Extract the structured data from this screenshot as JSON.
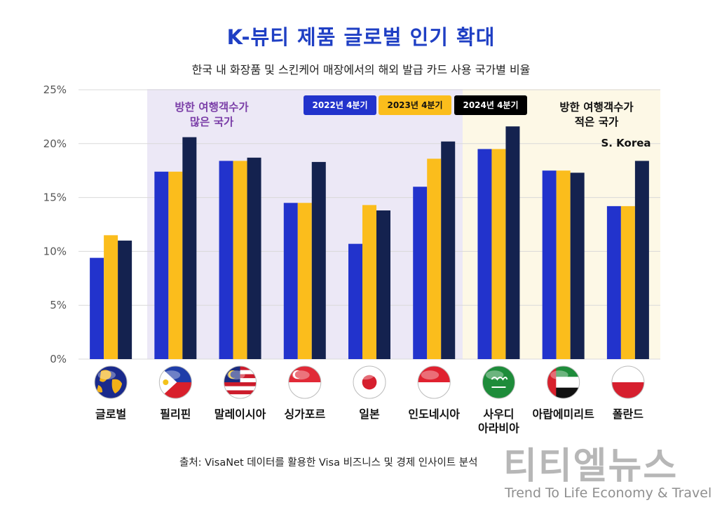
{
  "title": "K-뷰티 제품 글로벌 인기 확대",
  "subtitle": "한국 내 화장품 및 스킨케어 매장에서의 해외 발급 카드 사용 국가별 비율",
  "band_labels": {
    "high": "방한 여행객수가\n많은 국가",
    "low": "방한 여행객수가\n적은 국가"
  },
  "korea_note": "S. Korea",
  "source": "출처: VisaNet 데이터를 활용한 Visa 비즈니스 및 경제 인사이트 분석",
  "watermark": {
    "main": "티티엘뉴스",
    "sub": "Trend To Life Economy & Travel"
  },
  "colors": {
    "series_2022": "#2233cc",
    "series_2023": "#fbbd1c",
    "series_2024": "#14224f",
    "title": "#1f3fc4",
    "band_high": "#ece8f6",
    "band_low": "#fdf8e6"
  },
  "chart_data": {
    "type": "bar",
    "title": "K-뷰티 제품 글로벌 인기 확대",
    "subtitle": "한국 내 화장품 및 스킨케어 매장에서의 해외 발급 카드 사용 국가별 비율",
    "categories": [
      "글로벌",
      "필리핀",
      "말레이시아",
      "싱가포르",
      "일본",
      "인도네시아",
      "사우디\n아라비아",
      "아랍에미리트",
      "폴란드"
    ],
    "flag_icons": [
      "globe-icon",
      "philippines-flag-icon",
      "malaysia-flag-icon",
      "singapore-flag-icon",
      "japan-flag-icon",
      "indonesia-flag-icon",
      "saudi-arabia-flag-icon",
      "uae-flag-icon",
      "poland-flag-icon"
    ],
    "series": [
      {
        "name": "2022년 4분기",
        "values": [
          9.4,
          17.4,
          18.4,
          14.5,
          10.7,
          16.0,
          19.5,
          17.5,
          14.2
        ]
      },
      {
        "name": "2023년 4분기",
        "values": [
          11.5,
          17.4,
          18.4,
          14.5,
          14.3,
          18.6,
          19.5,
          17.5,
          14.2
        ]
      },
      {
        "name": "2024년 4분기",
        "values": [
          11.0,
          20.6,
          18.7,
          18.3,
          13.8,
          20.2,
          21.6,
          17.3,
          18.4
        ]
      }
    ],
    "ylim": [
      0,
      25
    ],
    "yticks": [
      "0%",
      "5%",
      "10%",
      "15%",
      "20%",
      "25%"
    ],
    "xlabel": "",
    "ylabel": "",
    "legend_position": "top-center",
    "grid": true
  }
}
